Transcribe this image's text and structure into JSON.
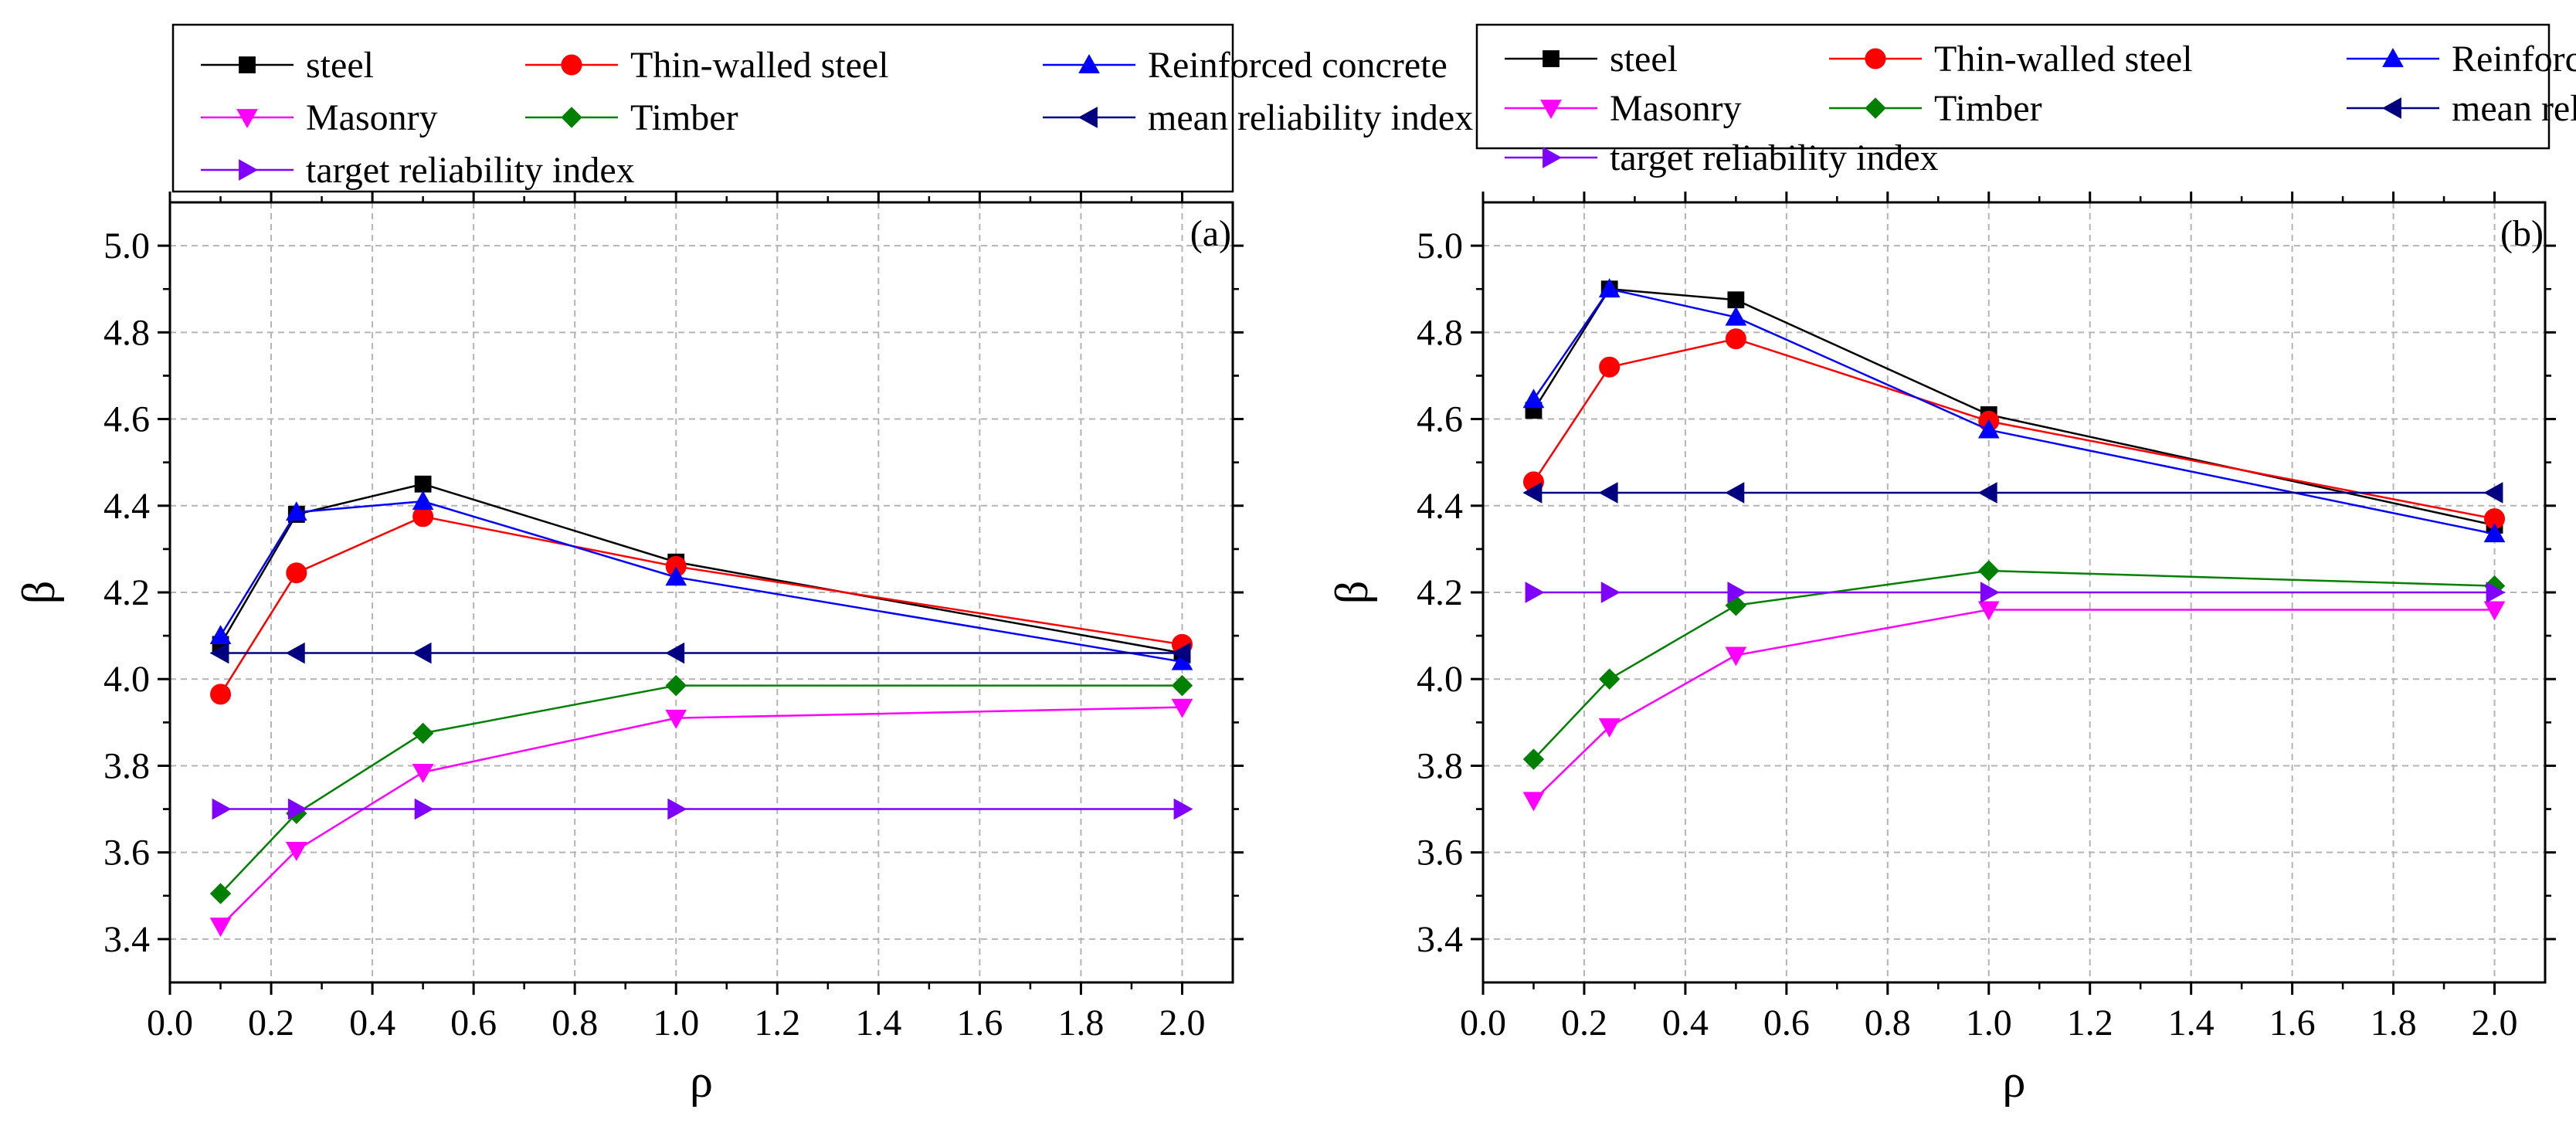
{
  "chart_data": [
    {
      "type": "line",
      "panel_label": "(a)",
      "xlabel": "ρ",
      "ylabel": "β",
      "xlim": [
        0.0,
        2.1
      ],
      "ylim": [
        3.3,
        5.1
      ],
      "x_ticks": [
        "0.0",
        "0.2",
        "0.4",
        "0.6",
        "0.8",
        "1.0",
        "1.2",
        "1.4",
        "1.6",
        "1.8",
        "2.0"
      ],
      "y_ticks": [
        "3.4",
        "3.6",
        "3.8",
        "4.0",
        "4.2",
        "4.4",
        "4.6",
        "4.8",
        "5.0"
      ],
      "grid": true,
      "legend_position": "top",
      "series": [
        {
          "name": "steel",
          "color": "#000000",
          "marker": "square",
          "x": [
            0.1,
            0.25,
            0.5,
            1.0,
            2.0
          ],
          "values": [
            4.08,
            4.38,
            4.45,
            4.27,
            4.06
          ]
        },
        {
          "name": "Thin-walled steel",
          "color": "#ff0000",
          "marker": "circle",
          "x": [
            0.1,
            0.25,
            0.5,
            1.0,
            2.0
          ],
          "values": [
            3.965,
            4.245,
            4.375,
            4.26,
            4.08
          ]
        },
        {
          "name": "Reinforced concrete",
          "color": "#0000ff",
          "marker": "triangle-up",
          "x": [
            0.1,
            0.25,
            0.5,
            1.0,
            2.0
          ],
          "values": [
            4.1,
            4.385,
            4.41,
            4.235,
            4.04
          ]
        },
        {
          "name": "Masonry",
          "color": "#ff00ff",
          "marker": "triangle-down",
          "x": [
            0.1,
            0.25,
            0.5,
            1.0,
            2.0
          ],
          "values": [
            3.43,
            3.605,
            3.785,
            3.91,
            3.935
          ]
        },
        {
          "name": "Timber",
          "color": "#008000",
          "marker": "diamond",
          "x": [
            0.1,
            0.25,
            0.5,
            1.0,
            2.0
          ],
          "values": [
            3.505,
            3.69,
            3.875,
            3.985,
            3.985
          ]
        },
        {
          "name": "mean reliability index",
          "color": "#000080",
          "marker": "triangle-left",
          "x": [
            0.1,
            0.25,
            0.5,
            1.0,
            2.0
          ],
          "values": [
            4.06,
            4.06,
            4.06,
            4.06,
            4.06
          ]
        },
        {
          "name": "target reliability index",
          "color": "#8000ff",
          "marker": "triangle-right",
          "x": [
            0.1,
            0.25,
            0.5,
            1.0,
            2.0
          ],
          "values": [
            3.7,
            3.7,
            3.7,
            3.7,
            3.7
          ]
        }
      ]
    },
    {
      "type": "line",
      "panel_label": "(b)",
      "xlabel": "ρ",
      "ylabel": "β",
      "xlim": [
        0.0,
        2.1
      ],
      "ylim": [
        3.3,
        5.1
      ],
      "x_ticks": [
        "0.0",
        "0.2",
        "0.4",
        "0.6",
        "0.8",
        "1.0",
        "1.2",
        "1.4",
        "1.6",
        "1.8",
        "2.0"
      ],
      "y_ticks": [
        "3.4",
        "3.6",
        "3.8",
        "4.0",
        "4.2",
        "4.4",
        "4.6",
        "4.8",
        "5.0"
      ],
      "grid": true,
      "legend_position": "top",
      "series": [
        {
          "name": "steel",
          "color": "#000000",
          "marker": "square",
          "x": [
            0.1,
            0.25,
            0.5,
            1.0,
            2.0
          ],
          "values": [
            4.62,
            4.9,
            4.875,
            4.61,
            4.355
          ]
        },
        {
          "name": "Thin-walled steel",
          "color": "#ff0000",
          "marker": "circle",
          "x": [
            0.1,
            0.25,
            0.5,
            1.0,
            2.0
          ],
          "values": [
            4.455,
            4.72,
            4.785,
            4.595,
            4.37
          ]
        },
        {
          "name": "Reinforced concrete",
          "color": "#0000ff",
          "marker": "triangle-up",
          "x": [
            0.1,
            0.25,
            0.5,
            1.0,
            2.0
          ],
          "values": [
            4.645,
            4.9,
            4.835,
            4.575,
            4.335
          ]
        },
        {
          "name": "Masonry",
          "color": "#ff00ff",
          "marker": "triangle-down",
          "x": [
            0.1,
            0.25,
            0.5,
            1.0,
            2.0
          ],
          "values": [
            3.72,
            3.89,
            4.055,
            4.16,
            4.16
          ]
        },
        {
          "name": "Timber",
          "color": "#008000",
          "marker": "diamond",
          "x": [
            0.1,
            0.25,
            0.5,
            1.0,
            2.0
          ],
          "values": [
            3.815,
            4.0,
            4.17,
            4.25,
            4.215
          ]
        },
        {
          "name": "mean reliability index",
          "color": "#000080",
          "marker": "triangle-left",
          "x": [
            0.1,
            0.25,
            0.5,
            1.0,
            2.0
          ],
          "values": [
            4.43,
            4.43,
            4.43,
            4.43,
            4.43
          ]
        },
        {
          "name": "target reliability index",
          "color": "#8000ff",
          "marker": "triangle-right",
          "x": [
            0.1,
            0.25,
            0.5,
            1.0,
            2.0
          ],
          "values": [
            4.2,
            4.2,
            4.2,
            4.2,
            4.2
          ]
        }
      ]
    }
  ]
}
